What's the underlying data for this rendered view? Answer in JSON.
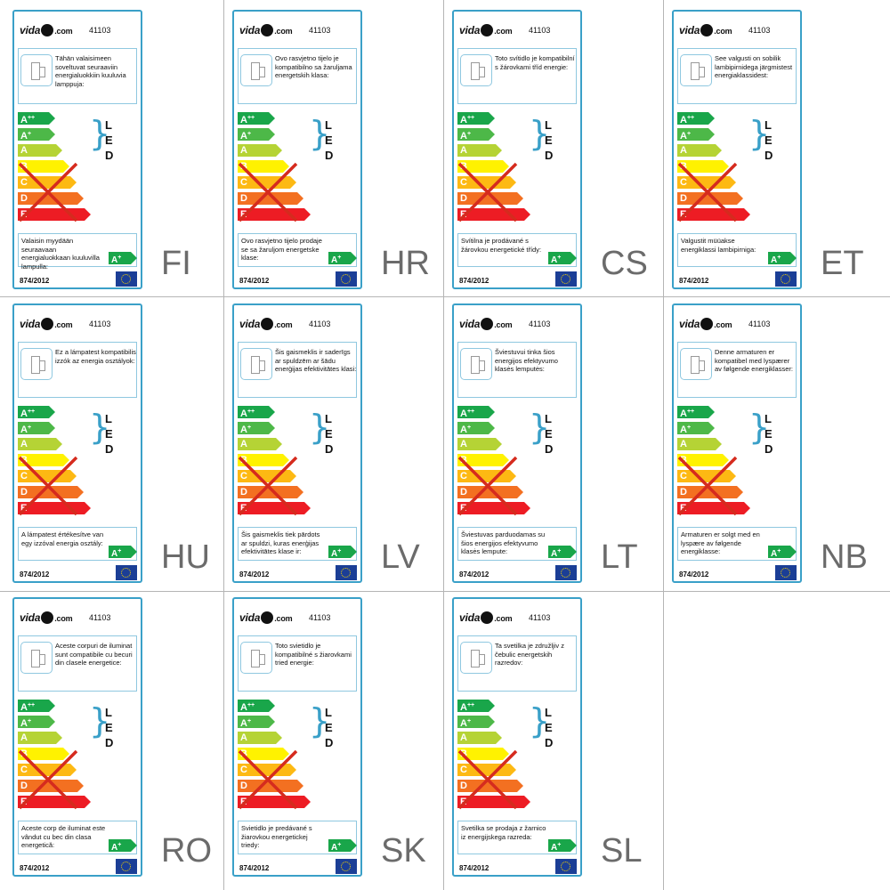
{
  "brand": {
    "name_pre": "vida",
    "name_post": "",
    "domain": ".com"
  },
  "product_code": "41103",
  "regulation": "874/2012",
  "scale": {
    "classes": [
      "A",
      "A",
      "A",
      "B",
      "C",
      "D",
      "E"
    ],
    "sups": [
      "++",
      "+",
      "",
      "",
      "",
      "",
      ""
    ],
    "colors": [
      "#19a64a",
      "#4db848",
      "#b5d335",
      "#fff200",
      "#fdb913",
      "#f37021",
      "#ed1c24"
    ]
  },
  "led_letters": [
    "L",
    "E",
    "D"
  ],
  "sold_with_class": {
    "letter": "A",
    "sup": "+"
  },
  "colors": {
    "border": "#3aa0c8",
    "brace": "#3aa0c8",
    "cross": "#d52b1e",
    "eu_flag": "#1b3e96"
  },
  "labels": [
    {
      "lang": "FI",
      "compat": "Tähän valaisimeen soveltuvat seuraaviin energialuokkiin kuuluvia lamppuja:",
      "sold": "Valaisin myydään seuraavaan energialuokkaan kuuluvilla lampulla:"
    },
    {
      "lang": "HR",
      "compat": "Ovo rasvjetno tijelo je kompatibilno sa žaruljama energetskih klasa:",
      "sold": "Ovo rasvjetno tijelo prodaje se sa žaruljom energetske klase:"
    },
    {
      "lang": "CS",
      "compat": "Toto svítidlo je kompatibilní s žárovkami tříd energie:",
      "sold": "Svítilna je prodávané s žárovkou energetické třídy:"
    },
    {
      "lang": "ET",
      "compat": "See valgusti on sobilik lambipirnidega järgmistest energiaklassidest:",
      "sold": "Valgustit müüakse energiklassi lambipirniga:"
    },
    {
      "lang": "HU",
      "compat": "Ez a lámpatest kompatibilis izzók az energia osztályok:",
      "sold": "A lámpatest értékesítve van egy izzóval energia osztály:"
    },
    {
      "lang": "LV",
      "compat": "Šis gaismeklis ir saderīgs ar spuldzēm ar šādu enerģijas efektivitātes klasi:",
      "sold": "Šis gaismeklis tiek pārdots ar spuldzi, kuras enerģijas efektivitātes klase ir:"
    },
    {
      "lang": "LT",
      "compat": "Šviestuvui tinka šios energijos efektyvumo klasės lemputės:",
      "sold": "Šviestuvas parduodamas su šios energijos efektyvumo klasės lempute:"
    },
    {
      "lang": "NB",
      "compat": "Denne armaturen er kompatibel med lyspærer av følgende energiklasser:",
      "sold": "Armaturen er solgt med en lyspære av følgende energiklasse:"
    },
    {
      "lang": "RO",
      "compat": "Aceste corpuri de iluminat sunt compatibile cu becuri din clasele energetice:",
      "sold": "Aceste corp de iluminat este vândut cu bec din clasa energetică:"
    },
    {
      "lang": "SK",
      "compat": "Toto svietidlo je kompatibilné s žiarovkami tried energie:",
      "sold": "Svietidlo je predávané s žiarovkou energetickej triedy:"
    },
    {
      "lang": "SL",
      "compat": "Ta svetilka je združljiv z čebulic energetskih razredov:",
      "sold": "Svetilka se prodaja z žarnico iz energijskega razreda:"
    }
  ]
}
